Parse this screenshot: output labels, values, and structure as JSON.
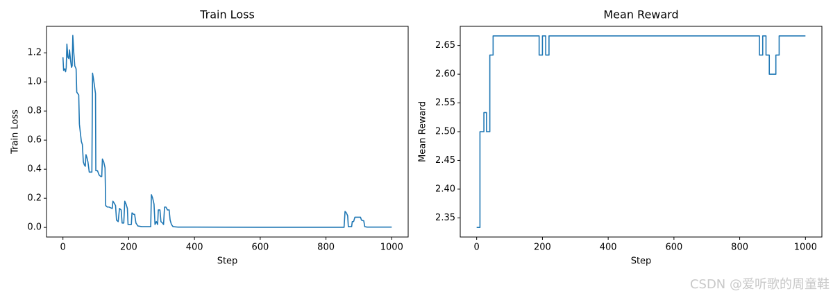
{
  "chart_data": [
    {
      "type": "line",
      "title": "Train Loss",
      "x_label": "Step",
      "y_label": "Train Loss",
      "xlim": [
        -50,
        1050
      ],
      "ylim": [
        -0.066,
        1.382
      ],
      "xticks": [
        0,
        200,
        400,
        600,
        800,
        1000
      ],
      "yticks": [
        {
          "value": 0,
          "label": "0.0"
        },
        {
          "value": 0.2,
          "label": "0.2"
        },
        {
          "value": 0.4,
          "label": "0.4"
        },
        {
          "value": 0.6,
          "label": "0.6"
        },
        {
          "value": 0.8,
          "label": "0.8"
        },
        {
          "value": 1,
          "label": "1.0"
        },
        {
          "value": 1.2,
          "label": "1.2"
        }
      ],
      "grid": false,
      "series": [
        {
          "color": "#1f77b4",
          "x": [
            0,
            2,
            5,
            8,
            10,
            12,
            15,
            18,
            20,
            23,
            26,
            28,
            30,
            33,
            36,
            40,
            42,
            45,
            48,
            50,
            53,
            56,
            59,
            62,
            65,
            68,
            70,
            73,
            76,
            80,
            85,
            88,
            90,
            93,
            96,
            99,
            100,
            105,
            110,
            115,
            118,
            120,
            124,
            128,
            130,
            135,
            140,
            145,
            150,
            152,
            155,
            160,
            163,
            168,
            172,
            177,
            180,
            185,
            188,
            192,
            196,
            198,
            204,
            208,
            210,
            215,
            218,
            222,
            228,
            240,
            267,
            269,
            273,
            277,
            280,
            284,
            288,
            290,
            295,
            298,
            303,
            306,
            309,
            313,
            318,
            323,
            326,
            330,
            335,
            350,
            400,
            600,
            855,
            858,
            862,
            866,
            868,
            878,
            880,
            884,
            888,
            895,
            905,
            908,
            915,
            918,
            925,
            1000
          ],
          "values": [
            1.17,
            1.08,
            1.09,
            1.07,
            1.1,
            1.26,
            1.17,
            1.16,
            1.22,
            1.15,
            1.1,
            1.11,
            1.32,
            1.2,
            1.11,
            1.09,
            0.93,
            0.92,
            0.91,
            0.71,
            0.65,
            0.59,
            0.57,
            0.45,
            0.43,
            0.42,
            0.5,
            0.48,
            0.45,
            0.38,
            0.38,
            0.38,
            1.06,
            1.02,
            0.97,
            0.92,
            0.39,
            0.39,
            0.36,
            0.35,
            0.35,
            0.47,
            0.45,
            0.41,
            0.15,
            0.14,
            0.14,
            0.135,
            0.13,
            0.18,
            0.17,
            0.15,
            0.05,
            0.04,
            0.13,
            0.12,
            0.03,
            0.03,
            0.18,
            0.16,
            0.13,
            0.02,
            0.02,
            0.02,
            0.1,
            0.09,
            0.09,
            0.03,
            0.01,
            0.005,
            0.005,
            0.225,
            0.2,
            0.16,
            0.02,
            0.04,
            0.02,
            0.12,
            0.12,
            0.04,
            0.03,
            0.02,
            0.14,
            0.14,
            0.12,
            0.12,
            0.05,
            0.02,
            0.005,
            0.002,
            0.002,
            0.001,
            0.001,
            0.11,
            0.1,
            0.08,
            0.005,
            0.005,
            0.04,
            0.04,
            0.07,
            0.07,
            0.07,
            0.05,
            0.045,
            0.005,
            0.002,
            0.002
          ]
        }
      ]
    },
    {
      "type": "line",
      "title": "Mean Reward",
      "x_label": "Step",
      "y_label": "Mean Reward",
      "xlim": [
        -50,
        1050
      ],
      "ylim": [
        2.3167,
        2.6833
      ],
      "xticks": [
        0,
        200,
        400,
        600,
        800,
        1000
      ],
      "yticks": [
        2.35,
        {
          "value": 2.4,
          "label": "2.40"
        },
        2.45,
        {
          "value": 2.5,
          "label": "2.50"
        },
        2.55,
        {
          "value": 2.6,
          "label": "2.60"
        },
        2.65
      ],
      "grid": false,
      "series": [
        {
          "color": "#1f77b4",
          "x": [
            0,
            10,
            10,
            22,
            22,
            30,
            30,
            40,
            40,
            50,
            50,
            190,
            190,
            200,
            200,
            210,
            210,
            220,
            220,
            860,
            860,
            870,
            870,
            880,
            880,
            890,
            890,
            910,
            910,
            920,
            920,
            1000
          ],
          "values": [
            2.3333,
            2.3333,
            2.5,
            2.5,
            2.5333,
            2.5333,
            2.5,
            2.5,
            2.6333,
            2.6333,
            2.6667,
            2.6667,
            2.6333,
            2.6333,
            2.6667,
            2.6667,
            2.6333,
            2.6333,
            2.6667,
            2.6667,
            2.6333,
            2.6333,
            2.6667,
            2.6667,
            2.6333,
            2.6333,
            2.6,
            2.6,
            2.6333,
            2.6333,
            2.6667,
            2.6667
          ]
        }
      ]
    }
  ],
  "watermark": "CSDN @爱听歌的周童鞋"
}
